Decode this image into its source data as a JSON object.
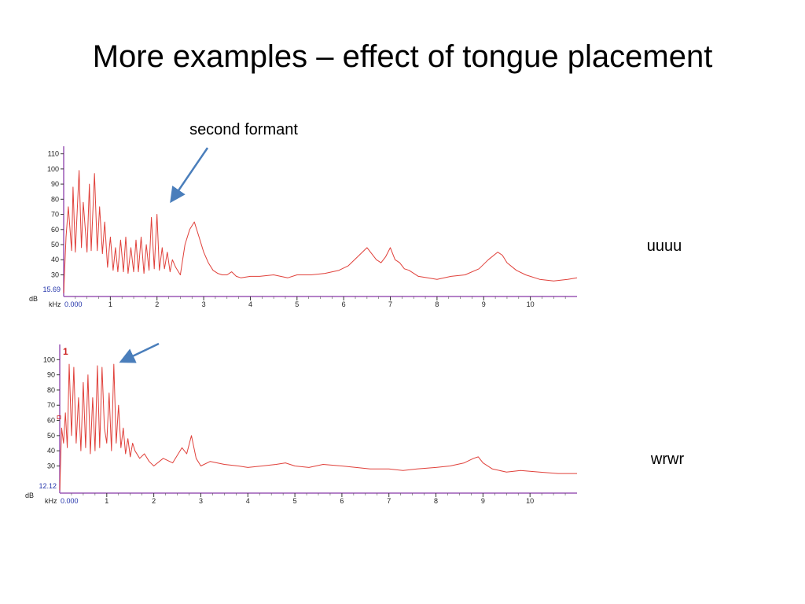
{
  "slide": {
    "title": "More examples – effect of tongue placement",
    "annotation": "second formant"
  },
  "colors": {
    "trace": "#e0403a",
    "axis": "#9b59b6",
    "arrow": "#4a7ebb",
    "readout": "#2233aa",
    "marker": "#cc2222"
  },
  "chart_data": [
    {
      "type": "line",
      "sample_label": "uuuu",
      "x_unit": "kHz",
      "y_unit": "dB",
      "x_origin_label": "0.000",
      "y_readout": "15.69",
      "xlim": [
        0,
        11
      ],
      "ylim": [
        15.69,
        115
      ],
      "xticks": [
        1,
        2,
        3,
        4,
        5,
        6,
        7,
        8,
        9,
        10
      ],
      "yticks": [
        30,
        40,
        50,
        60,
        70,
        80,
        90,
        100,
        110
      ],
      "grid": false,
      "series": [
        {
          "x": [
            0.0,
            0.05,
            0.1,
            0.17,
            0.2,
            0.25,
            0.33,
            0.38,
            0.42,
            0.5,
            0.55,
            0.59,
            0.66,
            0.72,
            0.77,
            0.83,
            0.88,
            0.94,
            1.0,
            1.06,
            1.11,
            1.16,
            1.22,
            1.28,
            1.33,
            1.38,
            1.44,
            1.5,
            1.55,
            1.6,
            1.66,
            1.72,
            1.77,
            1.83,
            1.88,
            1.94,
            2.0,
            2.05,
            2.11,
            2.16,
            2.22,
            2.28,
            2.33,
            2.4,
            2.5,
            2.6,
            2.7,
            2.8,
            2.9,
            3.0,
            3.1,
            3.2,
            3.3,
            3.4,
            3.5,
            3.6,
            3.7,
            3.8,
            4.0,
            4.2,
            4.5,
            4.8,
            5.0,
            5.3,
            5.6,
            5.9,
            6.1,
            6.3,
            6.5,
            6.6,
            6.7,
            6.8,
            6.9,
            7.0,
            7.1,
            7.2,
            7.3,
            7.4,
            7.6,
            7.8,
            8.0,
            8.3,
            8.6,
            8.9,
            9.1,
            9.3,
            9.4,
            9.5,
            9.7,
            9.9,
            10.2,
            10.5,
            10.8,
            11.0
          ],
          "y": [
            18,
            55,
            75,
            46,
            88,
            45,
            99,
            48,
            78,
            45,
            90,
            46,
            97,
            46,
            75,
            44,
            65,
            35,
            55,
            33,
            48,
            32,
            53,
            32,
            55,
            31,
            48,
            32,
            53,
            32,
            55,
            31,
            50,
            33,
            68,
            34,
            70,
            33,
            48,
            34,
            45,
            32,
            40,
            35,
            30,
            50,
            60,
            65,
            55,
            45,
            38,
            33,
            31,
            30,
            30,
            32,
            29,
            28,
            29,
            29,
            30,
            28,
            30,
            30,
            31,
            33,
            36,
            42,
            48,
            44,
            40,
            38,
            42,
            48,
            40,
            38,
            34,
            33,
            29,
            28,
            27,
            29,
            30,
            34,
            40,
            45,
            43,
            38,
            33,
            30,
            27,
            26,
            27,
            28
          ]
        }
      ]
    },
    {
      "type": "line",
      "sample_label": "wrwr",
      "x_unit": "kHz",
      "y_unit": "dB",
      "x_origin_label": "0.000",
      "y_readout": "12.12",
      "marker_label": "1",
      "xlim": [
        0,
        11
      ],
      "ylim": [
        12.12,
        110
      ],
      "xticks": [
        1,
        2,
        3,
        4,
        5,
        6,
        7,
        8,
        9,
        10
      ],
      "yticks": [
        30,
        40,
        50,
        60,
        70,
        80,
        90,
        100
      ],
      "grid": false,
      "series": [
        {
          "x": [
            0.0,
            0.04,
            0.08,
            0.12,
            0.16,
            0.2,
            0.25,
            0.3,
            0.35,
            0.4,
            0.45,
            0.5,
            0.55,
            0.6,
            0.65,
            0.7,
            0.75,
            0.8,
            0.85,
            0.9,
            0.95,
            1.0,
            1.05,
            1.1,
            1.15,
            1.2,
            1.25,
            1.3,
            1.35,
            1.4,
            1.45,
            1.5,
            1.55,
            1.6,
            1.7,
            1.8,
            1.9,
            2.0,
            2.2,
            2.4,
            2.6,
            2.7,
            2.8,
            2.9,
            3.0,
            3.2,
            3.5,
            3.8,
            4.0,
            4.3,
            4.6,
            4.8,
            5.0,
            5.3,
            5.6,
            6.0,
            6.3,
            6.6,
            7.0,
            7.3,
            7.6,
            8.0,
            8.3,
            8.6,
            8.8,
            8.9,
            9.0,
            9.2,
            9.5,
            9.8,
            10.2,
            10.6,
            11.0
          ],
          "y": [
            14,
            55,
            45,
            65,
            42,
            97,
            50,
            95,
            45,
            75,
            40,
            85,
            42,
            90,
            38,
            75,
            40,
            96,
            42,
            95,
            55,
            45,
            78,
            40,
            97,
            45,
            70,
            42,
            55,
            38,
            48,
            36,
            45,
            40,
            35,
            38,
            33,
            30,
            35,
            32,
            42,
            38,
            50,
            35,
            30,
            33,
            31,
            30,
            29,
            30,
            31,
            32,
            30,
            29,
            31,
            30,
            29,
            28,
            28,
            27,
            28,
            29,
            30,
            32,
            35,
            36,
            32,
            28,
            26,
            27,
            26,
            25,
            25
          ]
        }
      ]
    }
  ]
}
